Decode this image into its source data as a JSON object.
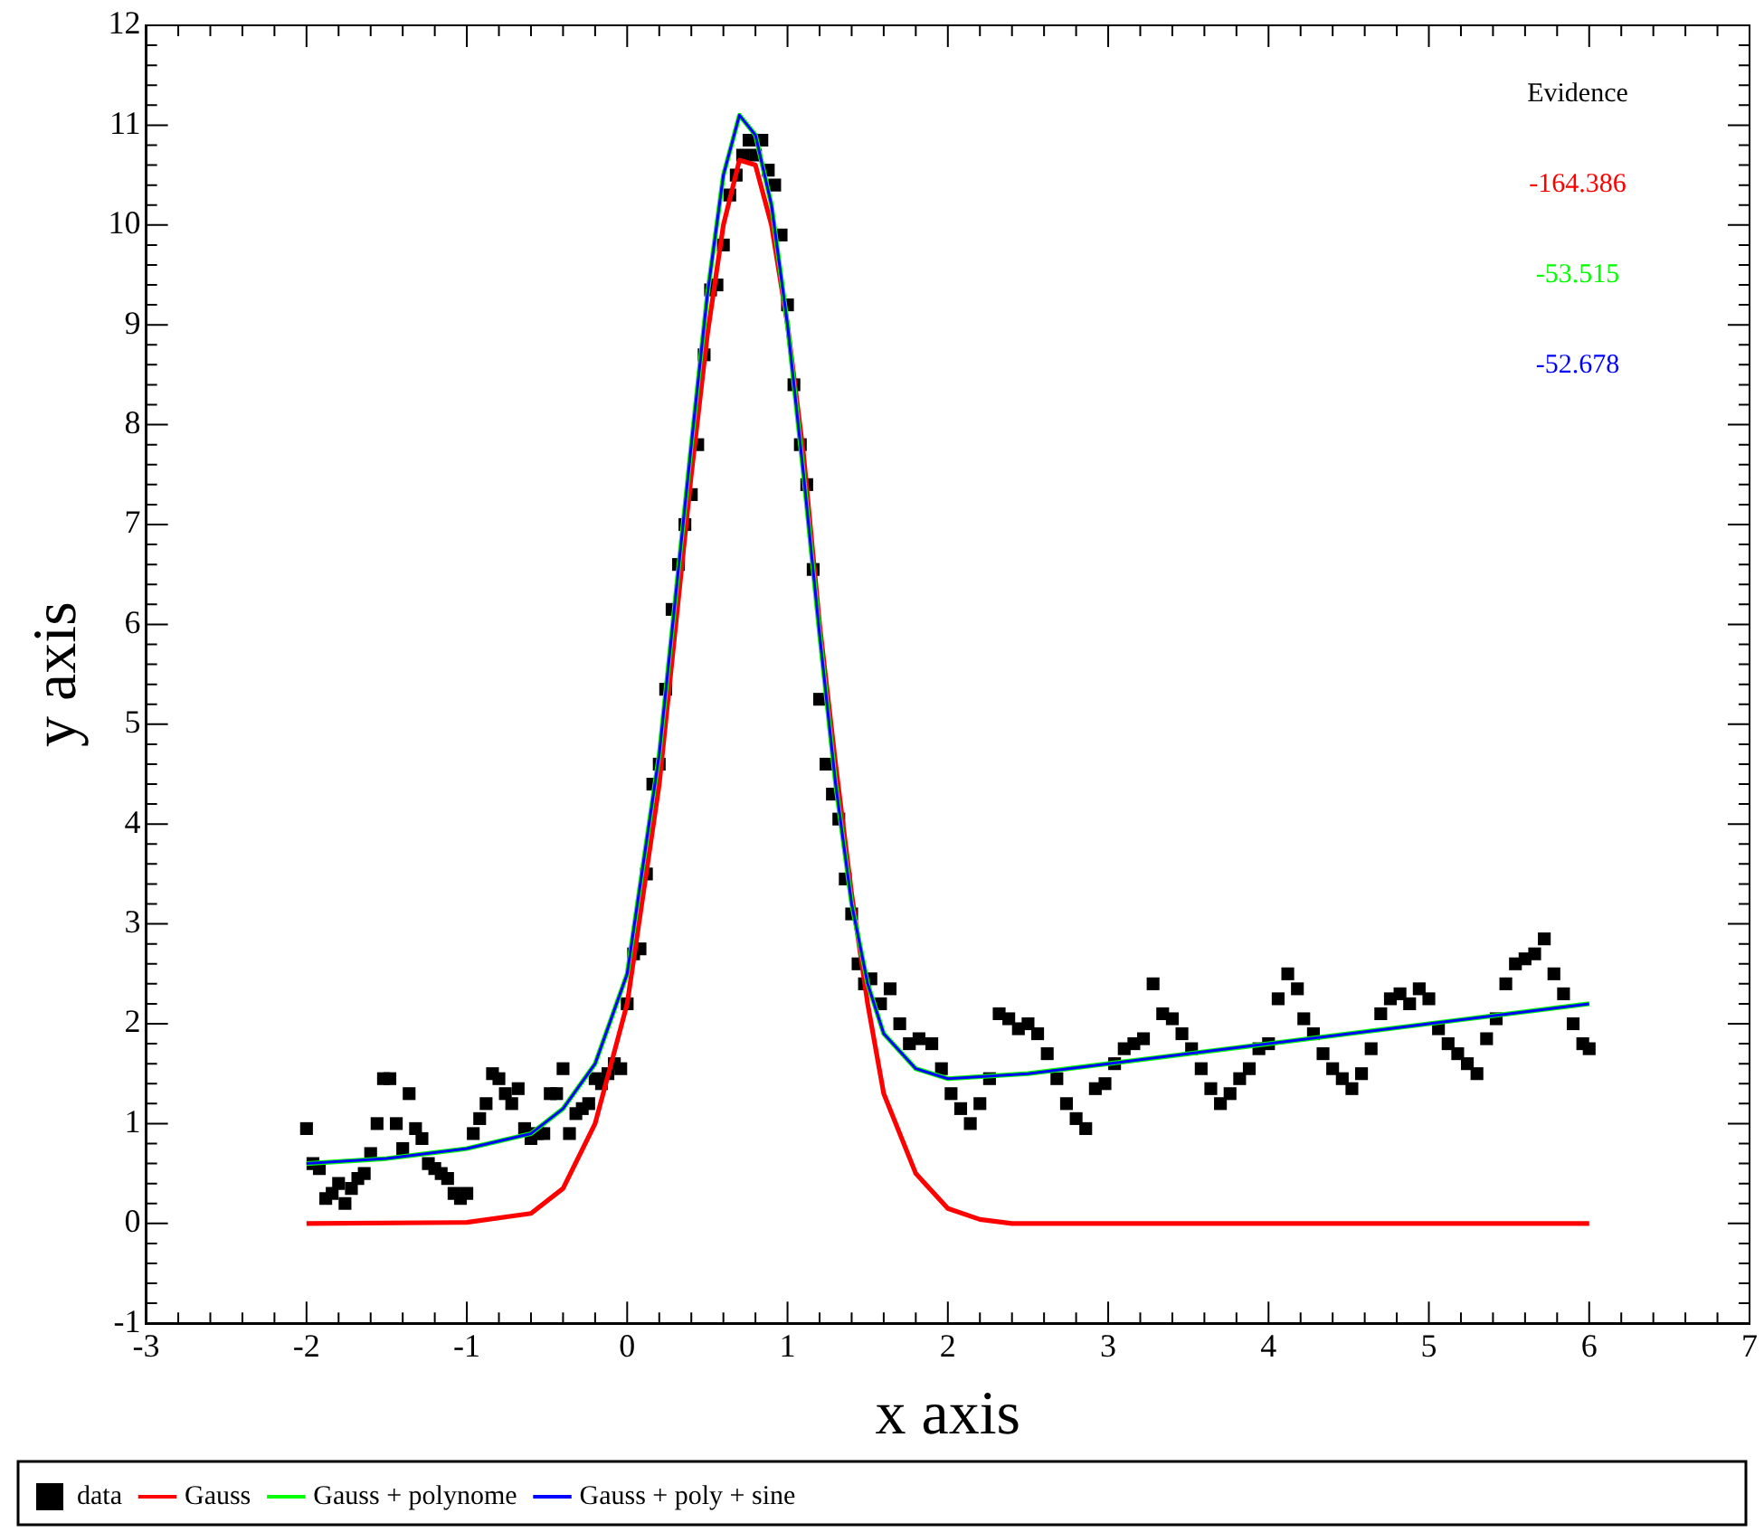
{
  "chart_data": {
    "type": "scatter",
    "xlabel": "x axis",
    "ylabel": "y axis",
    "xlim": [
      -3,
      7
    ],
    "ylim": [
      -1,
      12
    ],
    "xticks": [
      -3,
      {
        "value": -2.8,
        "label": null
      },
      {
        "value": -2.6,
        "label": null
      },
      {
        "value": -2.4,
        "label": null
      },
      {
        "value": -2.2,
        "label": null
      },
      -2,
      {
        "value": -1.8,
        "label": null
      },
      {
        "value": -1.6,
        "label": null
      },
      {
        "value": -1.4,
        "label": null
      },
      {
        "value": -1.2,
        "label": null
      },
      -1,
      {
        "value": -0.8,
        "label": null
      },
      {
        "value": -0.6,
        "label": null
      },
      {
        "value": -0.4,
        "label": null
      },
      {
        "value": -0.2,
        "label": null
      },
      0,
      {
        "value": 0.2,
        "label": null
      },
      {
        "value": 0.4,
        "label": null
      },
      {
        "value": 0.6,
        "label": null
      },
      {
        "value": 0.8,
        "label": null
      },
      1,
      {
        "value": 1.2,
        "label": null
      },
      {
        "value": 1.4,
        "label": null
      },
      {
        "value": 1.6,
        "label": null
      },
      {
        "value": 1.8,
        "label": null
      },
      2,
      {
        "value": 2.2,
        "label": null
      },
      {
        "value": 2.4,
        "label": null
      },
      {
        "value": 2.6,
        "label": null
      },
      {
        "value": 2.8,
        "label": null
      },
      3,
      {
        "value": 3.2,
        "label": null
      },
      {
        "value": 3.4,
        "label": null
      },
      {
        "value": 3.6,
        "label": null
      },
      {
        "value": 3.8,
        "label": null
      },
      4,
      {
        "value": 4.2,
        "label": null
      },
      {
        "value": 4.4,
        "label": null
      },
      {
        "value": 4.6,
        "label": null
      },
      {
        "value": 4.8,
        "label": null
      },
      5,
      {
        "value": 5.2,
        "label": null
      },
      {
        "value": 5.4,
        "label": null
      },
      {
        "value": 5.6,
        "label": null
      },
      {
        "value": 5.8,
        "label": null
      },
      6,
      {
        "value": 6.2,
        "label": null
      },
      {
        "value": 6.4,
        "label": null
      },
      {
        "value": 6.6,
        "label": null
      },
      {
        "value": 6.8,
        "label": null
      },
      7
    ],
    "yticks": [
      -1,
      {
        "value": -0.8,
        "label": null
      },
      {
        "value": -0.6,
        "label": null
      },
      {
        "value": -0.4,
        "label": null
      },
      {
        "value": -0.2,
        "label": null
      },
      0,
      {
        "value": 0.2,
        "label": null
      },
      {
        "value": 0.4,
        "label": null
      },
      {
        "value": 0.6,
        "label": null
      },
      {
        "value": 0.8,
        "label": null
      },
      1,
      {
        "value": 1.2,
        "label": null
      },
      {
        "value": 1.4,
        "label": null
      },
      {
        "value": 1.6,
        "label": null
      },
      {
        "value": 1.8,
        "label": null
      },
      2,
      {
        "value": 2.2,
        "label": null
      },
      {
        "value": 2.4,
        "label": null
      },
      {
        "value": 2.6,
        "label": null
      },
      {
        "value": 2.8,
        "label": null
      },
      3,
      {
        "value": 3.2,
        "label": null
      },
      {
        "value": 3.4,
        "label": null
      },
      {
        "value": 3.6,
        "label": null
      },
      {
        "value": 3.8,
        "label": null
      },
      4,
      {
        "value": 4.2,
        "label": null
      },
      {
        "value": 4.4,
        "label": null
      },
      {
        "value": 4.6,
        "label": null
      },
      {
        "value": 4.8,
        "label": null
      },
      5,
      {
        "value": 5.2,
        "label": null
      },
      {
        "value": 5.4,
        "label": null
      },
      {
        "value": 5.6,
        "label": null
      },
      {
        "value": 5.8,
        "label": null
      },
      6,
      {
        "value": 6.2,
        "label": null
      },
      {
        "value": 6.4,
        "label": null
      },
      {
        "value": 6.6,
        "label": null
      },
      {
        "value": 6.8,
        "label": null
      },
      7,
      {
        "value": 7.2,
        "label": null
      },
      {
        "value": 7.4,
        "label": null
      },
      {
        "value": 7.6,
        "label": null
      },
      {
        "value": 7.8,
        "label": null
      },
      8,
      {
        "value": 8.2,
        "label": null
      },
      {
        "value": 8.4,
        "label": null
      },
      {
        "value": 8.6,
        "label": null
      },
      {
        "value": 8.8,
        "label": null
      },
      9,
      {
        "value": 9.2,
        "label": null
      },
      {
        "value": 9.4,
        "label": null
      },
      {
        "value": 9.6,
        "label": null
      },
      {
        "value": 9.8,
        "label": null
      },
      10,
      {
        "value": 10.2,
        "label": null
      },
      {
        "value": 10.4,
        "label": null
      },
      {
        "value": 10.6,
        "label": null
      },
      {
        "value": 10.8,
        "label": null
      },
      11,
      {
        "value": 11.2,
        "label": null
      },
      {
        "value": 11.4,
        "label": null
      },
      {
        "value": 11.6,
        "label": null
      },
      {
        "value": 11.8,
        "label": null
      },
      12
    ],
    "grid": false,
    "legend": "bottom",
    "annotations": [
      "Evidence",
      "-164.386",
      "-53.515",
      "-52.678"
    ],
    "series": [
      {
        "name": "data",
        "marker": "square",
        "color": "#000000",
        "x": [
          -2.0,
          -1.96,
          -1.92,
          -1.88,
          -1.84,
          -1.8,
          -1.76,
          -1.72,
          -1.68,
          -1.64,
          -1.6,
          -1.56,
          -1.52,
          -1.48,
          -1.44,
          -1.4,
          -1.36,
          -1.32,
          -1.28,
          -1.24,
          -1.2,
          -1.16,
          -1.12,
          -1.08,
          -1.04,
          -1.0,
          -0.96,
          -0.92,
          -0.88,
          -0.84,
          -0.8,
          -0.76,
          -0.72,
          -0.68,
          -0.64,
          -0.6,
          -0.56,
          -0.52,
          -0.48,
          -0.44,
          -0.4,
          -0.36,
          -0.32,
          -0.28,
          -0.24,
          -0.2,
          -0.16,
          -0.12,
          -0.08,
          -0.04,
          0.0,
          0.04,
          0.08,
          0.12,
          0.16,
          0.2,
          0.24,
          0.28,
          0.32,
          0.36,
          0.4,
          0.44,
          0.48,
          0.52,
          0.56,
          0.6,
          0.64,
          0.68,
          0.72,
          0.76,
          0.8,
          0.84,
          0.88,
          0.92,
          0.96,
          1.0,
          1.04,
          1.08,
          1.12,
          1.16,
          1.2,
          1.24,
          1.28,
          1.32,
          1.36,
          1.4,
          1.44,
          1.48,
          1.52,
          1.58,
          1.64,
          1.7,
          1.76,
          1.82,
          1.9,
          1.96,
          2.02,
          2.08,
          2.14,
          2.2,
          2.26,
          2.32,
          2.38,
          2.44,
          2.5,
          2.56,
          2.62,
          2.68,
          2.74,
          2.8,
          2.86,
          2.92,
          2.98,
          3.04,
          3.1,
          3.16,
          3.22,
          3.28,
          3.34,
          3.4,
          3.46,
          3.52,
          3.58,
          3.64,
          3.7,
          3.76,
          3.82,
          3.88,
          3.94,
          4.0,
          4.06,
          4.12,
          4.18,
          4.22,
          4.28,
          4.34,
          4.4,
          4.46,
          4.52,
          4.58,
          4.64,
          4.7,
          4.76,
          4.82,
          4.88,
          4.94,
          5.0,
          5.06,
          5.12,
          5.18,
          5.24,
          5.3,
          5.36,
          5.42,
          5.48,
          5.54,
          5.6,
          5.66,
          5.72,
          5.78,
          5.84,
          5.9,
          5.96,
          6.0
        ],
        "values": [
          0.95,
          0.6,
          0.55,
          0.25,
          0.3,
          0.4,
          0.2,
          0.35,
          0.45,
          0.5,
          0.7,
          1.0,
          1.45,
          1.45,
          1.0,
          0.75,
          1.3,
          0.95,
          0.85,
          0.6,
          0.55,
          0.5,
          0.45,
          0.3,
          0.25,
          0.3,
          0.9,
          1.05,
          1.2,
          1.5,
          1.45,
          1.3,
          1.2,
          1.35,
          0.95,
          0.85,
          0.9,
          0.9,
          1.3,
          1.3,
          1.55,
          0.9,
          1.1,
          1.15,
          1.2,
          1.45,
          1.4,
          1.5,
          1.6,
          1.55,
          2.2,
          2.7,
          2.75,
          3.5,
          4.4,
          4.6,
          5.35,
          6.15,
          6.6,
          7.0,
          7.3,
          7.8,
          8.7,
          9.35,
          9.4,
          9.8,
          10.3,
          10.5,
          10.7,
          10.85,
          10.7,
          10.85,
          10.55,
          10.4,
          9.9,
          9.2,
          8.4,
          7.8,
          7.4,
          6.55,
          5.25,
          4.6,
          4.3,
          4.05,
          3.45,
          3.1,
          2.6,
          2.4,
          2.45,
          2.2,
          2.35,
          2.0,
          1.8,
          1.85,
          1.8,
          1.55,
          1.3,
          1.15,
          1.0,
          1.2,
          1.45,
          2.1,
          2.05,
          1.95,
          2.0,
          1.9,
          1.7,
          1.45,
          1.2,
          1.05,
          0.95,
          1.35,
          1.4,
          1.6,
          1.75,
          1.8,
          1.85,
          2.4,
          2.1,
          2.05,
          1.9,
          1.75,
          1.55,
          1.35,
          1.2,
          1.3,
          1.45,
          1.55,
          1.75,
          1.8,
          2.25,
          2.5,
          2.35,
          2.05,
          1.9,
          1.7,
          1.55,
          1.45,
          1.35,
          1.5,
          1.75,
          2.1,
          2.25,
          2.3,
          2.2,
          2.35,
          2.25,
          1.95,
          1.8,
          1.7,
          1.6,
          1.5,
          1.85,
          2.05,
          2.4,
          2.6,
          2.65,
          2.7,
          2.85,
          2.5,
          2.3,
          2.0,
          1.8,
          1.75
        ]
      },
      {
        "name": "Gauss",
        "type": "line",
        "marker": "none",
        "color": "#ff0000",
        "x": [
          -2,
          -1,
          -0.6,
          -0.4,
          -0.2,
          0,
          0.2,
          0.4,
          0.5,
          0.6,
          0.7,
          0.8,
          0.9,
          1.0,
          1.1,
          1.2,
          1.3,
          1.4,
          1.5,
          1.6,
          1.8,
          2.0,
          2.2,
          2.4,
          6
        ],
        "values": [
          0,
          0.01,
          0.1,
          0.35,
          1.0,
          2.2,
          4.4,
          7.5,
          8.9,
          10.0,
          10.65,
          10.6,
          10.0,
          9.0,
          7.7,
          6.0,
          4.6,
          3.3,
          2.2,
          1.3,
          0.5,
          0.15,
          0.04,
          0,
          0
        ]
      },
      {
        "name": "Gauss + polynome",
        "type": "line",
        "marker": "none",
        "color": "#00ff00",
        "x": [
          -2,
          -1.5,
          -1,
          -0.6,
          -0.4,
          -0.2,
          0,
          0.2,
          0.4,
          0.5,
          0.6,
          0.7,
          0.8,
          0.9,
          1.0,
          1.1,
          1.2,
          1.3,
          1.4,
          1.5,
          1.6,
          1.8,
          2.0,
          2.5,
          3,
          4,
          5,
          6
        ],
        "values": [
          0.6,
          0.65,
          0.75,
          0.9,
          1.15,
          1.6,
          2.5,
          4.7,
          7.8,
          9.3,
          10.5,
          11.1,
          10.9,
          10.2,
          9.0,
          7.5,
          5.9,
          4.4,
          3.2,
          2.4,
          1.9,
          1.55,
          1.45,
          1.5,
          1.6,
          1.8,
          2.0,
          2.2
        ]
      },
      {
        "name": "Gauss + poly + sine",
        "type": "line",
        "marker": "none",
        "color": "#0000ff",
        "x": [
          -2,
          -1.5,
          -1,
          -0.6,
          -0.4,
          -0.2,
          0,
          0.2,
          0.4,
          0.5,
          0.6,
          0.7,
          0.8,
          0.9,
          1.0,
          1.1,
          1.2,
          1.3,
          1.4,
          1.5,
          1.6,
          1.8,
          2.0,
          2.5,
          3,
          4,
          5,
          6
        ],
        "values": [
          0.6,
          0.65,
          0.75,
          0.9,
          1.15,
          1.6,
          2.5,
          4.7,
          7.8,
          9.3,
          10.5,
          11.1,
          10.9,
          10.2,
          9.0,
          7.5,
          5.9,
          4.4,
          3.2,
          2.4,
          1.9,
          1.55,
          1.45,
          1.5,
          1.6,
          1.8,
          2.0,
          2.2
        ]
      }
    ]
  }
}
